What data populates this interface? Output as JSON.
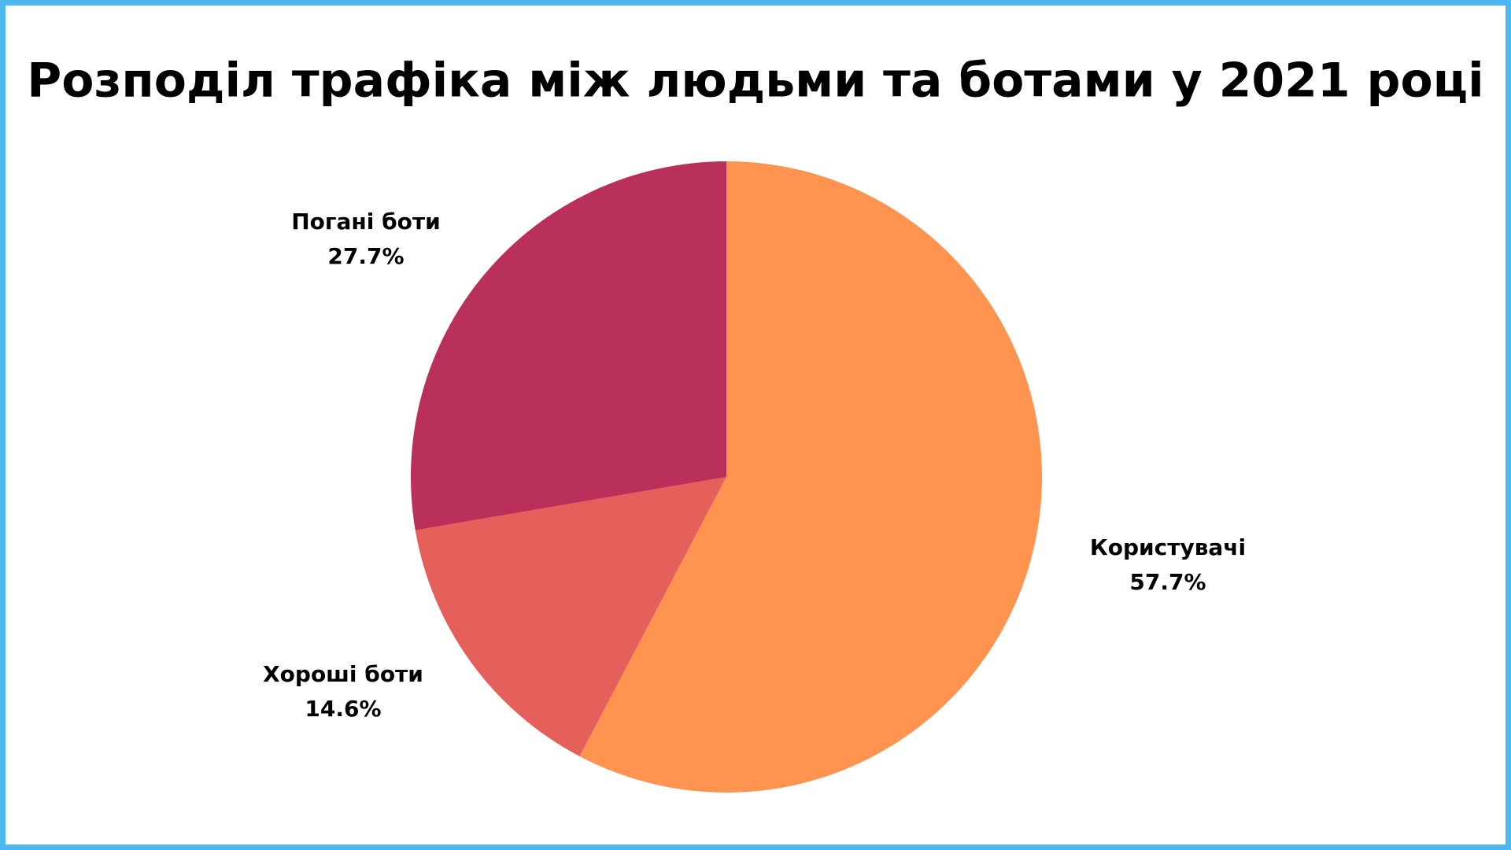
{
  "chart_data": {
    "type": "pie",
    "title": "Розподіл трафіка між людьми та ботами у 2021 році",
    "categories": [
      "Користувачі",
      "Хороші боти",
      "Погані боти"
    ],
    "values": [
      57.7,
      14.6,
      27.7
    ],
    "value_labels": [
      "57.7%",
      "14.6%",
      "27.7%"
    ],
    "colors": [
      "#ff9350",
      "#e5605a",
      "#b9305a"
    ]
  }
}
